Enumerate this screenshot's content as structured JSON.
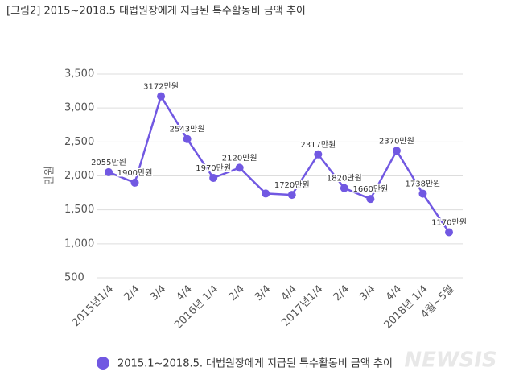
{
  "chart_data": {
    "type": "line",
    "title": "[그림2] 2015~2018.5 대법원장에게 지급된 특수활동비 금액 추이",
    "y_label": "만원",
    "categories": [
      "2015년1/4",
      "2/4",
      "3/4",
      "4/4",
      "2016년 1/4",
      "2/4",
      "3/4",
      "4/4",
      "2017년1/4",
      "2/4",
      "3/4",
      "4/4",
      "2018년 1/4",
      "4월~5월"
    ],
    "series": [
      {
        "name": "2015.1~2018.5. 대법원장에게 지급된 특수활동비 금액 추이",
        "color": "#7158e2",
        "values": [
          2055,
          1900,
          3172,
          2543,
          1970,
          2120,
          1740,
          1720,
          2317,
          1820,
          1660,
          2370,
          1738,
          1170
        ],
        "value_labels": [
          "2055만원",
          "1900만원",
          "3172만원",
          "2543만원",
          "1970만원",
          "2120만원",
          null,
          "1720만원",
          "2317만원",
          "1820만원",
          "1660만원",
          "2370만원",
          "1738만원",
          "1170만원"
        ]
      }
    ],
    "ylim": [
      500,
      3500
    ],
    "yticks": [
      {
        "value": 3500,
        "label": "3,500"
      },
      {
        "value": 3000,
        "label": "3,000"
      },
      {
        "value": 2500,
        "label": "2,500"
      },
      {
        "value": 2000,
        "label": "2,000"
      },
      {
        "value": 1500,
        "label": "1,500"
      },
      {
        "value": 1000,
        "label": "1,000"
      },
      500
    ],
    "grid": true,
    "watermark": "NEWSIS"
  }
}
